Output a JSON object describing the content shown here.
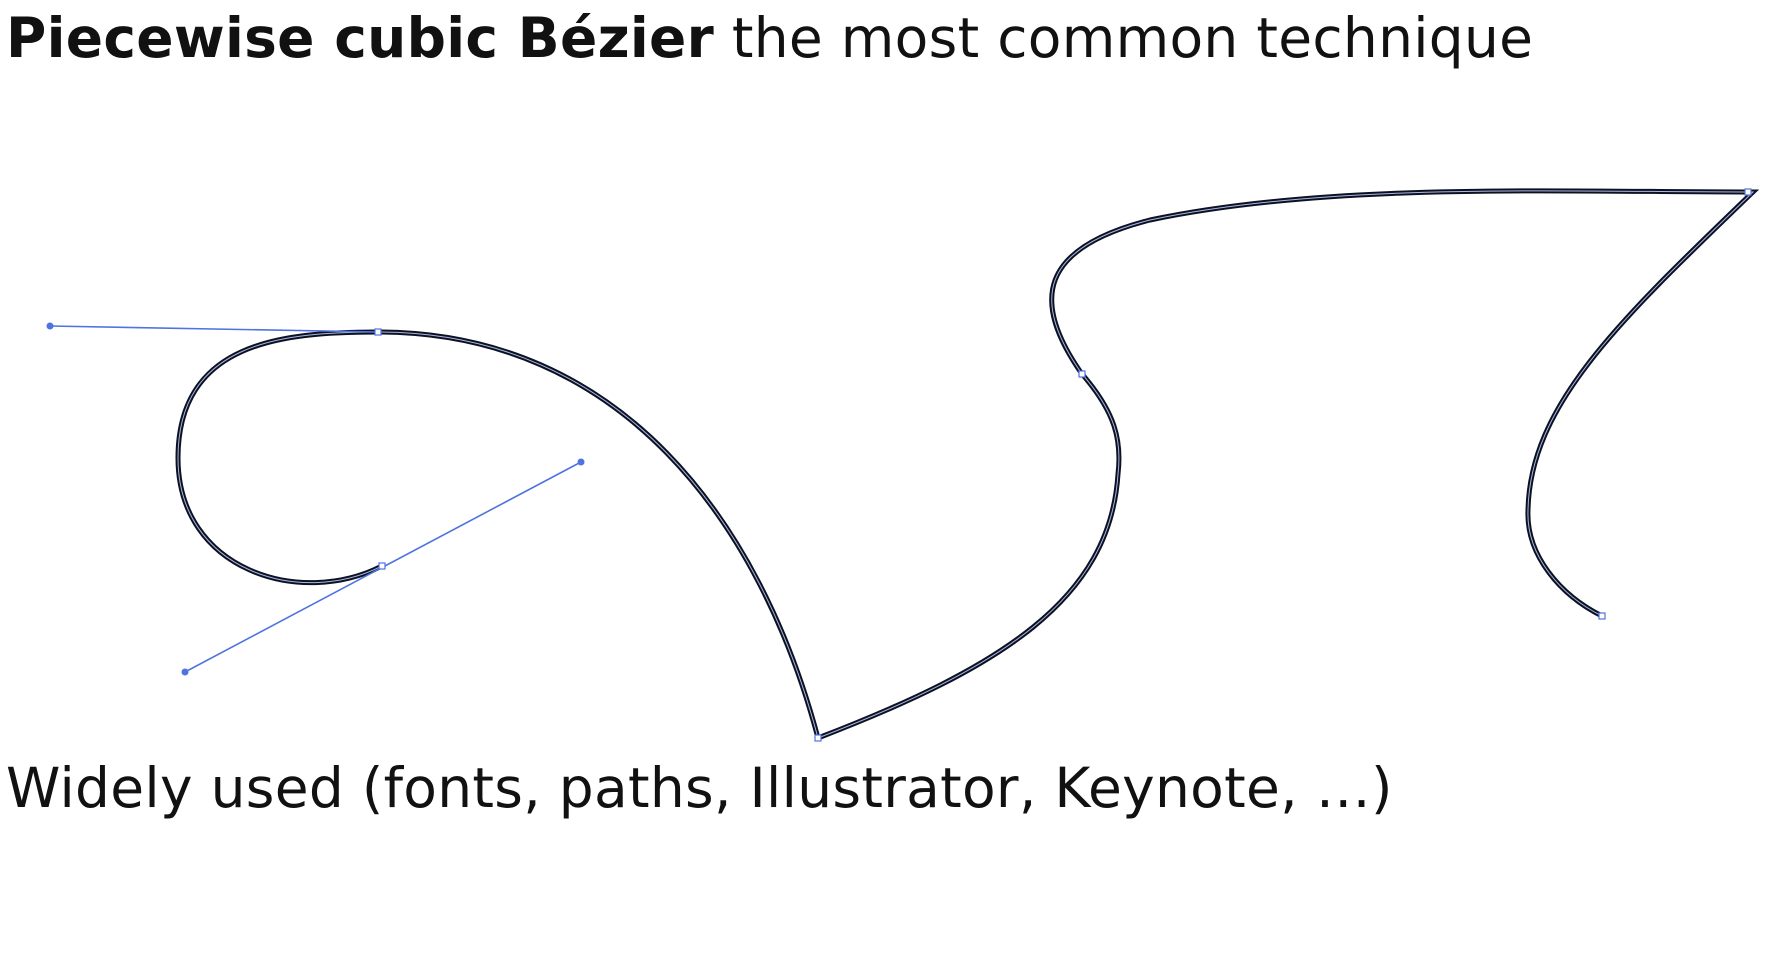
{
  "slide": {
    "title_bold": "Piecewise cubic Bézier",
    "title_rest": " the most common technique",
    "bottom_text": "Widely used (fonts, paths, Illustrator, Keynote, …)"
  },
  "colors": {
    "curve": "#0d1222",
    "curve_highlight": "#a9b7e6",
    "handle": "#4f73e0",
    "text": "#111111"
  }
}
